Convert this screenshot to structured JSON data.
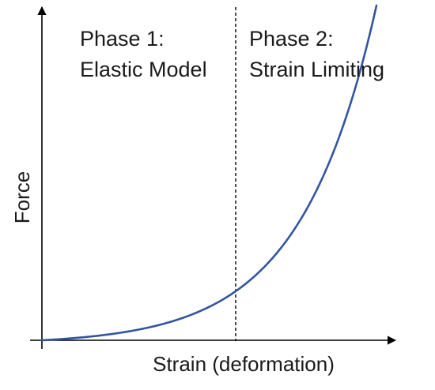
{
  "figure": {
    "phase1": {
      "title": "Phase 1:",
      "subtitle": "Elastic Model"
    },
    "phase2": {
      "title": "Phase 2:",
      "subtitle": "Strain Limiting"
    },
    "axes": {
      "x_label": "Strain (deformation)",
      "y_label": "Force"
    },
    "colors": {
      "curve": "#3355a0",
      "axes": "#000000",
      "divider": "#000000"
    }
  }
}
